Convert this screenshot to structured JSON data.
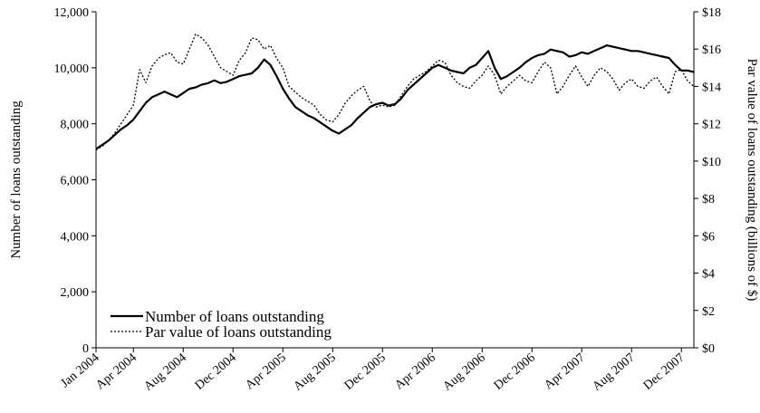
{
  "chart_data": {
    "type": "line",
    "x_ticks": [
      "Jan 2004",
      "Apr 2004",
      "Aug 2004",
      "Dec 2004",
      "Apr 2005",
      "Aug 2005",
      "Dec 2005",
      "Apr 2006",
      "Aug 2006",
      "Dec 2006",
      "Apr 2007",
      "Aug 2007",
      "Dec 2007"
    ],
    "ylabel_left": "Number of loans outstanding",
    "ylabel_right": "Par value of loans outstanding (billions of $)",
    "ylim_left": [
      0,
      12000
    ],
    "ylim_right": [
      0,
      18
    ],
    "yticks_left": [
      "0",
      "2,000",
      "4,000",
      "6,000",
      "8,000",
      "10,000",
      "12,000"
    ],
    "yticks_right": [
      "$0",
      "$2",
      "$4",
      "$6",
      "$8",
      "$10",
      "$12",
      "$14",
      "$16",
      "$18"
    ],
    "legend_position": "bottom-left",
    "grid": false,
    "x_unit": "months since Jan 2004",
    "series": [
      {
        "name": "Number of loans outstanding",
        "axis": "left",
        "style": "solid",
        "x": [
          0,
          0.5,
          1,
          1.5,
          2,
          2.5,
          3,
          3.5,
          4,
          4.5,
          5,
          5.5,
          6,
          6.5,
          7,
          7.5,
          8,
          8.5,
          9,
          9.5,
          10,
          10.5,
          11,
          11.5,
          12,
          12.5,
          13,
          13.5,
          14,
          14.5,
          15,
          15.5,
          16,
          16.5,
          17,
          17.5,
          18,
          18.5,
          19,
          19.5,
          20,
          20.5,
          21,
          21.5,
          22,
          22.5,
          23,
          23.5,
          24,
          24.5,
          25,
          25.5,
          26,
          26.5,
          27,
          27.5,
          28,
          28.5,
          29,
          29.5,
          30,
          30.5,
          31,
          31.5,
          32,
          32.5,
          33,
          33.5,
          34,
          34.5,
          35,
          35.5,
          36,
          36.5,
          37,
          37.5,
          38,
          38.5,
          39,
          39.5,
          40,
          40.5,
          41,
          41.5,
          42,
          42.5,
          43,
          43.5,
          44,
          44.5,
          45,
          45.5,
          46,
          46.5,
          47,
          47.5,
          48
        ],
        "values": [
          7100,
          7250,
          7400,
          7600,
          7800,
          7950,
          8150,
          8450,
          8750,
          8950,
          9050,
          9150,
          9050,
          8950,
          9100,
          9250,
          9300,
          9400,
          9450,
          9550,
          9450,
          9500,
          9600,
          9700,
          9750,
          9800,
          10000,
          10300,
          10100,
          9700,
          9250,
          8900,
          8600,
          8450,
          8300,
          8200,
          8050,
          7900,
          7750,
          7650,
          7800,
          7950,
          8200,
          8400,
          8600,
          8700,
          8750,
          8650,
          8700,
          8900,
          9200,
          9400,
          9600,
          9800,
          10000,
          10100,
          10000,
          9900,
          9850,
          9800,
          10000,
          10100,
          10350,
          10600,
          10000,
          9600,
          9700,
          9850,
          10000,
          10200,
          10350,
          10450,
          10500,
          10650,
          10600,
          10550,
          10400,
          10450,
          10550,
          10500,
          10600,
          10700,
          10800,
          10750,
          10700,
          10650,
          10600,
          10600,
          10550,
          10500,
          10450,
          10400,
          10350,
          10100,
          9900,
          9900,
          9850
        ]
      },
      {
        "name": "Par value of loans outstanding",
        "axis": "right",
        "style": "dotted",
        "x": [
          0,
          0.5,
          1,
          1.5,
          2,
          2.5,
          3,
          3.5,
          4,
          4.5,
          5,
          5.5,
          6,
          6.5,
          7,
          7.5,
          8,
          8.5,
          9,
          9.5,
          10,
          10.5,
          11,
          11.5,
          12,
          12.5,
          13,
          13.5,
          14,
          14.5,
          15,
          15.5,
          16,
          16.5,
          17,
          17.5,
          18,
          18.5,
          19,
          19.5,
          20,
          20.5,
          21,
          21.5,
          22,
          22.5,
          23,
          23.5,
          24,
          24.5,
          25,
          25.5,
          26,
          26.5,
          27,
          27.5,
          28,
          28.5,
          29,
          29.5,
          30,
          30.5,
          31,
          31.5,
          32,
          32.5,
          33,
          33.5,
          34,
          34.5,
          35,
          35.5,
          36,
          36.5,
          37,
          37.5,
          38,
          38.5,
          39,
          39.5,
          40,
          40.5,
          41,
          41.5,
          42,
          42.5,
          43,
          43.5,
          44,
          44.5,
          45,
          45.5,
          46,
          46.5,
          47,
          47.5,
          48
        ],
        "values": [
          10.6,
          10.8,
          11.1,
          11.5,
          12.0,
          12.5,
          13.0,
          14.9,
          14.2,
          15.1,
          15.5,
          15.7,
          15.8,
          15.3,
          15.2,
          16.0,
          16.8,
          16.6,
          16.2,
          15.6,
          15.0,
          14.8,
          14.6,
          15.4,
          15.8,
          16.6,
          16.5,
          16.0,
          16.2,
          15.5,
          15.0,
          14.0,
          13.7,
          13.4,
          13.2,
          13.0,
          12.5,
          12.2,
          12.1,
          12.5,
          13.1,
          13.5,
          13.8,
          14.0,
          13.2,
          12.9,
          13.0,
          12.9,
          13.0,
          13.5,
          14.0,
          14.4,
          14.6,
          14.8,
          15.1,
          15.4,
          15.3,
          14.6,
          14.2,
          14.0,
          13.9,
          14.3,
          14.6,
          15.1,
          14.6,
          13.6,
          14.0,
          14.3,
          14.6,
          14.3,
          14.2,
          14.8,
          15.3,
          15.0,
          13.6,
          14.0,
          14.6,
          15.1,
          14.5,
          14.0,
          14.6,
          15.0,
          14.8,
          14.4,
          13.8,
          14.2,
          14.4,
          14.0,
          13.9,
          14.3,
          14.5,
          14.0,
          13.6,
          14.8,
          14.9,
          14.3,
          14.0
        ]
      }
    ]
  }
}
